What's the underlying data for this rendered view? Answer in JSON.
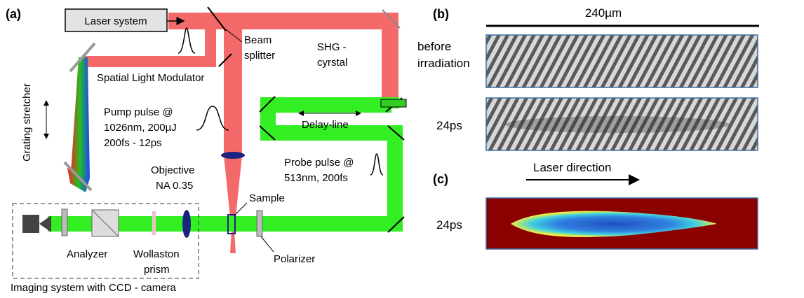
{
  "panel_a": {
    "label": "(a)",
    "laser": "Laser system",
    "beam_splitter": [
      "Beam",
      "splitter"
    ],
    "slm": "Spatial Light Modulator",
    "stretcher": "Grating stretcher",
    "pump": [
      "Pump pulse @",
      "1026nm, 200µJ",
      "200fs - 12ps"
    ],
    "objective": [
      "Objective",
      "NA 0.35"
    ],
    "shg": [
      "SHG -",
      "cyrstal"
    ],
    "delay": "Delay-line",
    "probe": [
      "Probe pulse @",
      "513nm, 200fs"
    ],
    "sample": "Sample",
    "analyzer": "Analyzer",
    "wollaston": [
      "Wollaston",
      "prism"
    ],
    "polarizer": "Polarizer",
    "imaging": "Imaging system with CCD - camera"
  },
  "panel_b": {
    "label": "(b)",
    "scale": "240µm",
    "before": [
      "before",
      "irradiation"
    ],
    "delay": "24ps"
  },
  "panel_c": {
    "label": "(c)",
    "direction": "Laser direction",
    "delay": "24ps"
  }
}
